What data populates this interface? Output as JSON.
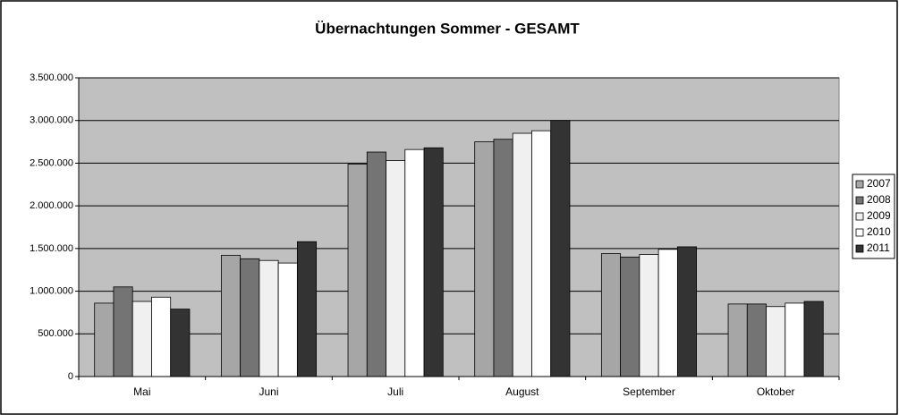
{
  "chart_data": {
    "type": "bar",
    "title": "Übernachtungen Sommer - GESAMT",
    "categories": [
      "Mai",
      "Juni",
      "Juli",
      "August",
      "September",
      "Oktober"
    ],
    "series": [
      {
        "name": "2007",
        "color": "#a6a6a6",
        "values": [
          860000,
          1420000,
          2490000,
          2750000,
          1440000,
          850000
        ]
      },
      {
        "name": "2008",
        "color": "#747474",
        "values": [
          1050000,
          1380000,
          2630000,
          2780000,
          1400000,
          850000
        ]
      },
      {
        "name": "2009",
        "color": "#f0f0f0",
        "values": [
          880000,
          1360000,
          2530000,
          2850000,
          1430000,
          820000
        ]
      },
      {
        "name": "2010",
        "color": "#ffffff",
        "values": [
          930000,
          1330000,
          2660000,
          2880000,
          1490000,
          860000
        ]
      },
      {
        "name": "2011",
        "color": "#333333",
        "values": [
          790000,
          1580000,
          2680000,
          3000000,
          1520000,
          880000
        ]
      }
    ],
    "ylim": [
      0,
      3500000
    ],
    "yticks": [
      0,
      {
        "value": 500000,
        "label": "500.000"
      },
      {
        "value": 1000000,
        "label": "1.000.000"
      },
      {
        "value": 1500000,
        "label": "1.500.000"
      },
      {
        "value": 2000000,
        "label": "2.000.000"
      },
      {
        "value": 2500000,
        "label": "2.500.000"
      },
      {
        "value": 3000000,
        "label": "3.000.000"
      },
      {
        "value": 3500000,
        "label": "3.500.000"
      }
    ],
    "grid": true,
    "legend": "right",
    "background": "#c0c0c0"
  }
}
